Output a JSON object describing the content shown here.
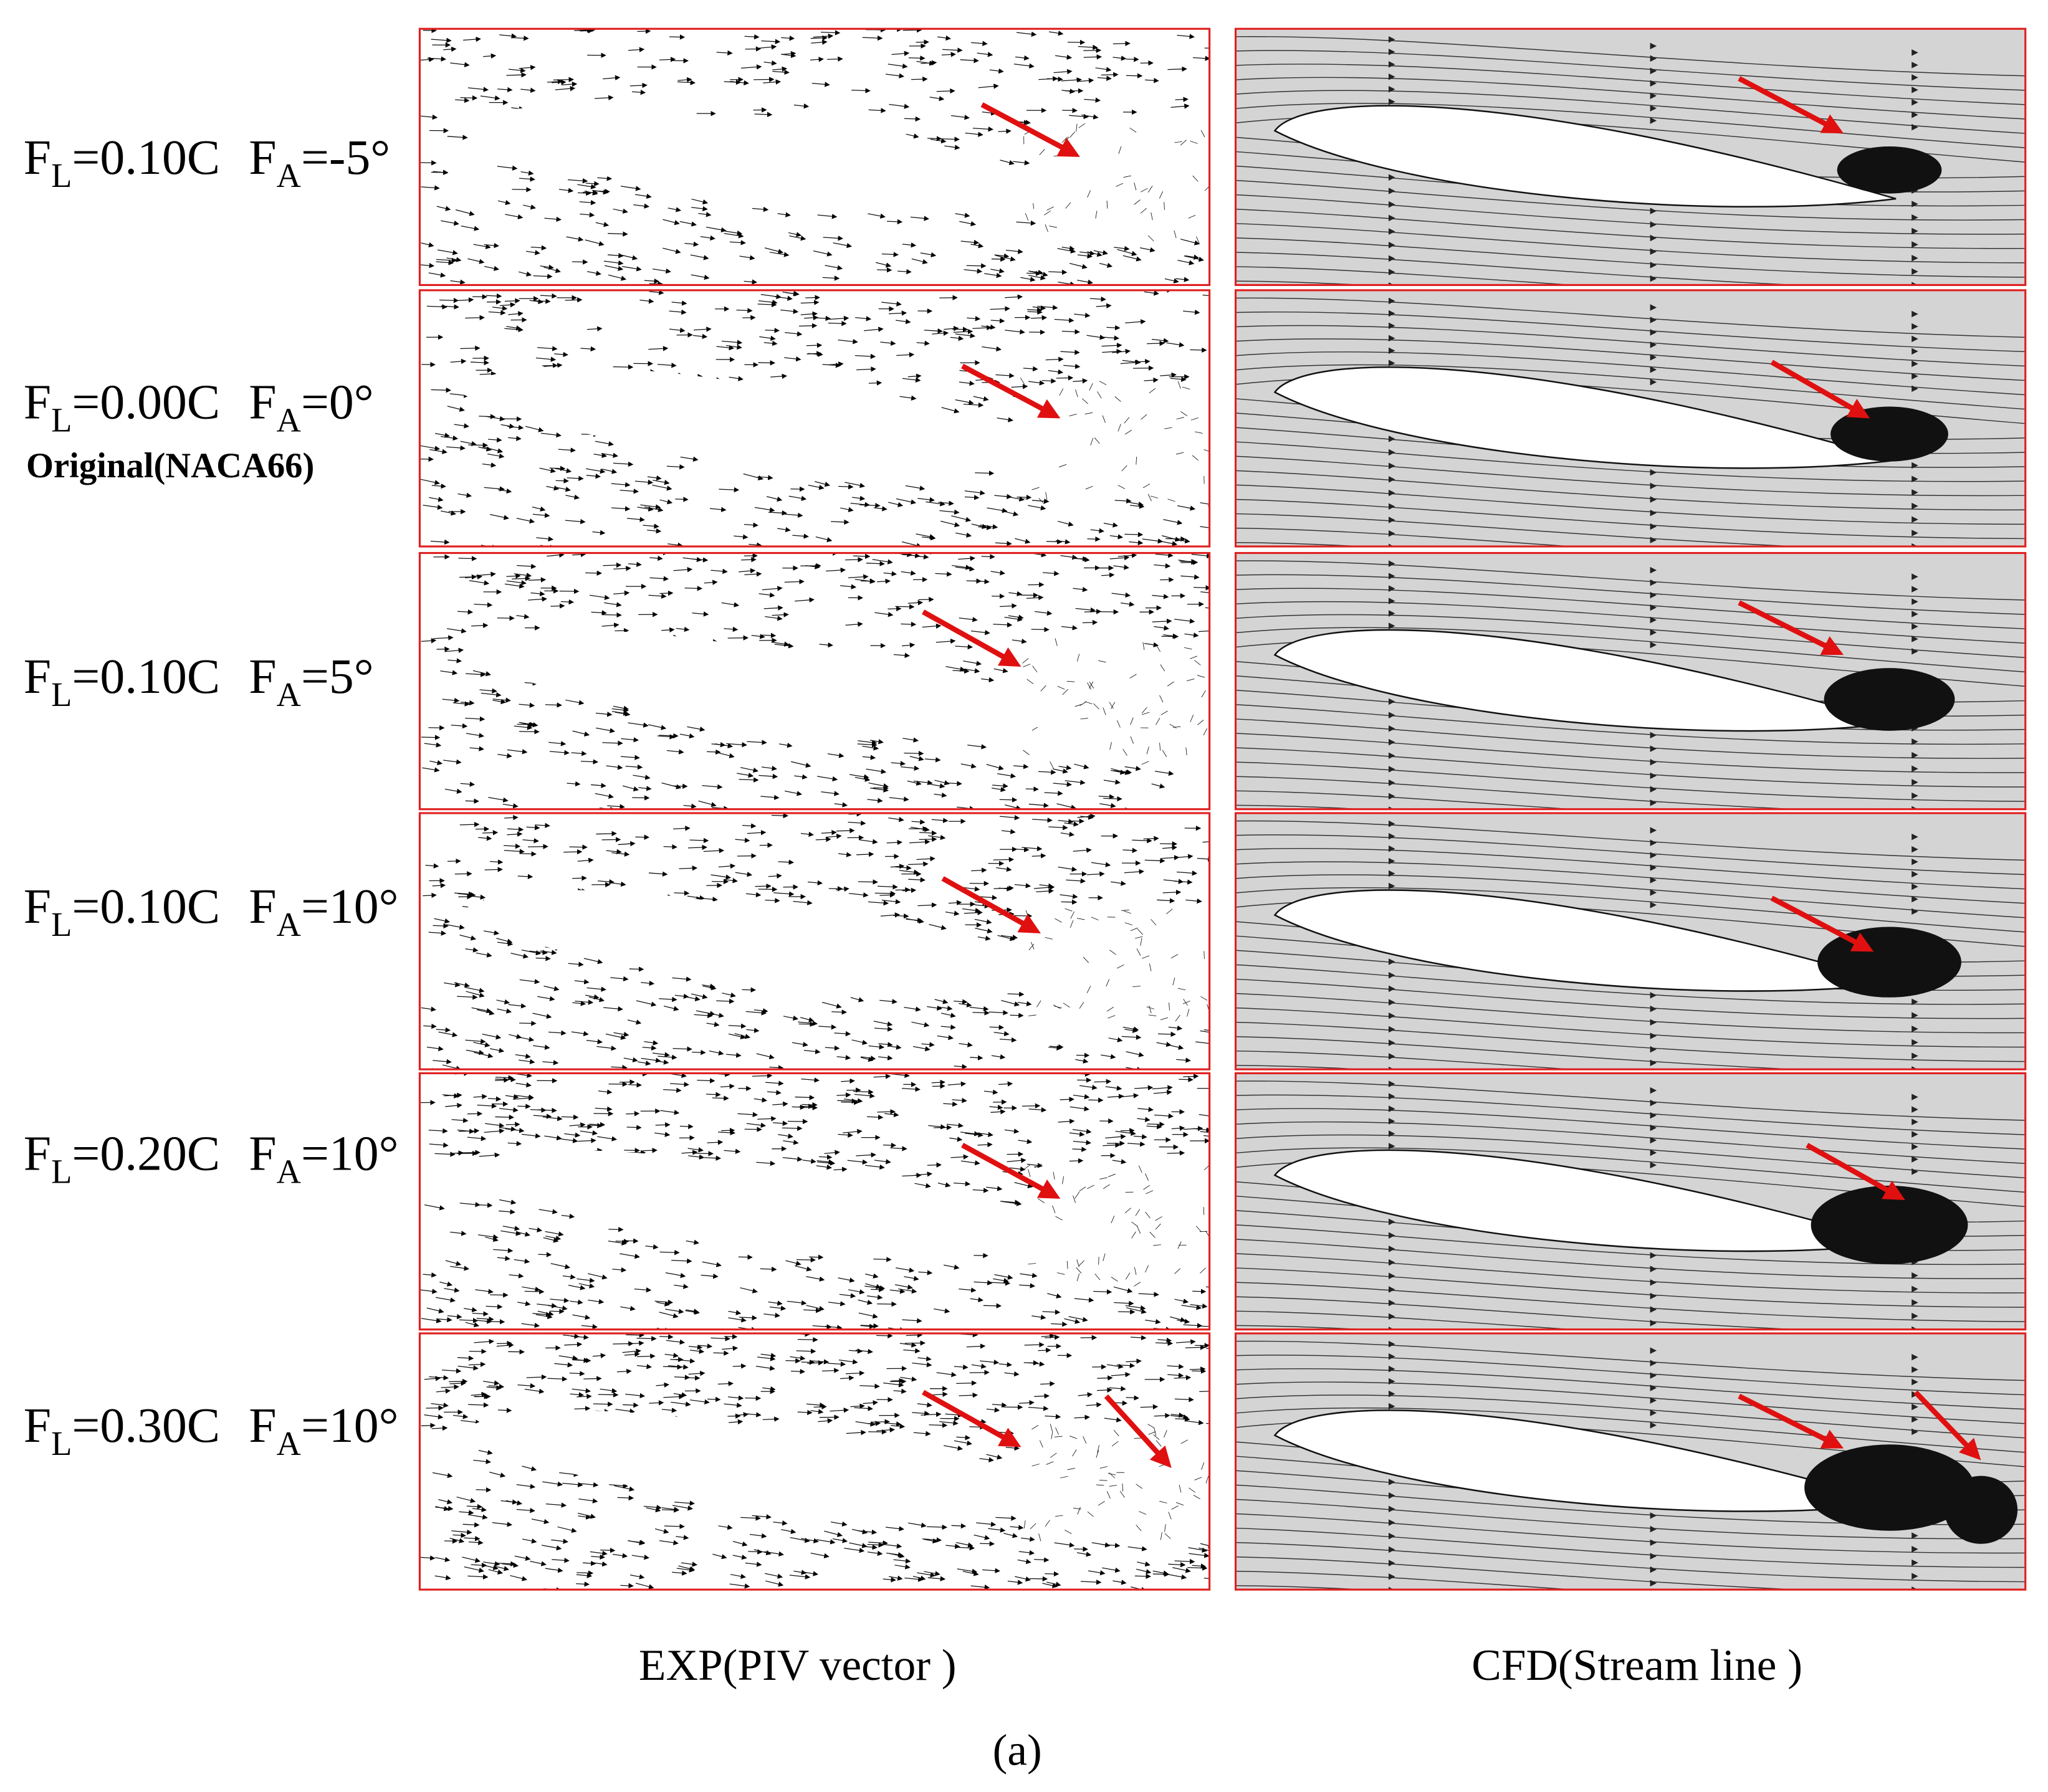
{
  "symbols": {
    "letter": "F",
    "lift_sub": "L",
    "angle_sub": "A"
  },
  "rows": [
    {
      "lift": "=0.10C",
      "angle": "=-5°"
    },
    {
      "lift": "=0.00C",
      "angle": "=0°",
      "note": "Original(NACA66)"
    },
    {
      "lift": "=0.10C",
      "angle": "=5°"
    },
    {
      "lift": "=0.10C",
      "angle": "=10°"
    },
    {
      "lift": "=0.20C",
      "angle": "=10°"
    },
    {
      "lift": "=0.30C",
      "angle": "=10°"
    }
  ],
  "columns": [
    "EXP(PIV vector )",
    "CFD(Stream line )"
  ],
  "panel_label": "(a)"
}
